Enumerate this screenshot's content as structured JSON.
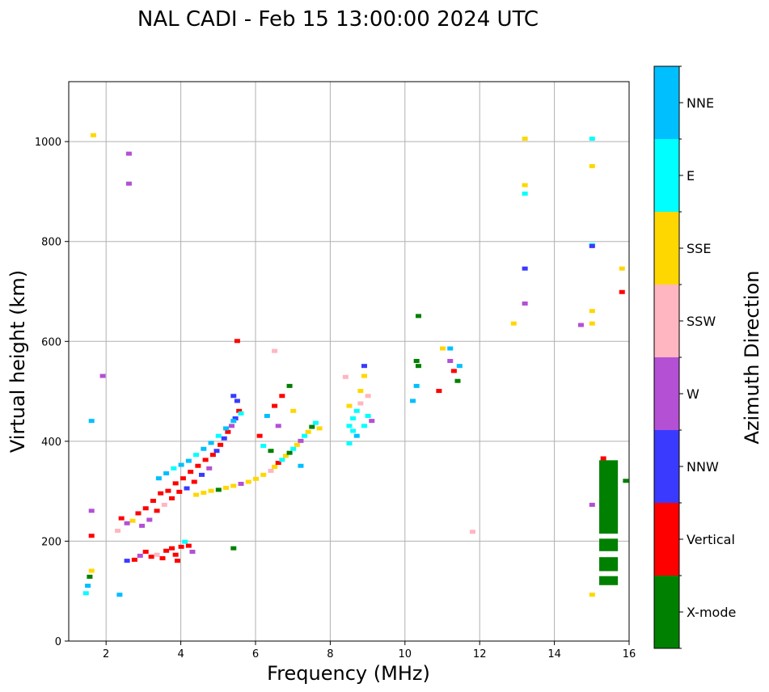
{
  "chart_data": {
    "type": "scatter",
    "title": "NAL CADI - Feb 15 13:00:00 2024 UTC",
    "xlabel": "Frequency (MHz)",
    "ylabel": "Virtual height (km)",
    "xlim": [
      1,
      16
    ],
    "ylim": [
      0,
      1120
    ],
    "xticks": [
      2,
      4,
      6,
      8,
      10,
      12,
      14,
      16
    ],
    "yticks": [
      0,
      200,
      400,
      600,
      800,
      1000
    ],
    "grid": true,
    "colorbar": {
      "label": "Azimuth Direction",
      "categories": [
        {
          "name": "X-mode",
          "color": "#008000"
        },
        {
          "name": "Vertical",
          "color": "#ff0000"
        },
        {
          "name": "NNW",
          "color": "#3a3aff"
        },
        {
          "name": "W",
          "color": "#b350d4"
        },
        {
          "name": "SSW",
          "color": "#ffb6c1"
        },
        {
          "name": "SSE",
          "color": "#ffd700"
        },
        {
          "name": "E",
          "color": "#00ffff"
        },
        {
          "name": "NNE",
          "color": "#00bfff"
        }
      ]
    },
    "series": [
      {
        "name": "trace-low",
        "points": [
          [
            1.45,
            95,
            "E"
          ],
          [
            1.5,
            110,
            "NNE"
          ],
          [
            1.55,
            128,
            "X-mode"
          ],
          [
            1.6,
            140,
            "SSE"
          ],
          [
            2.35,
            92,
            "NNE"
          ],
          [
            2.55,
            160,
            "NNW"
          ],
          [
            2.75,
            162,
            "Vertical"
          ],
          [
            2.9,
            170,
            "W"
          ],
          [
            3.05,
            178,
            "Vertical"
          ],
          [
            3.2,
            168,
            "Vertical"
          ],
          [
            3.35,
            172,
            "SSW"
          ],
          [
            3.5,
            165,
            "Vertical"
          ],
          [
            3.6,
            180,
            "Vertical"
          ],
          [
            3.75,
            185,
            "Vertical"
          ],
          [
            3.85,
            172,
            "Vertical"
          ],
          [
            4.0,
            188,
            "Vertical"
          ],
          [
            4.1,
            198,
            "E"
          ],
          [
            4.2,
            190,
            "Vertical"
          ],
          [
            4.3,
            178,
            "W"
          ],
          [
            3.9,
            160,
            "Vertical"
          ]
        ]
      },
      {
        "name": "trace-main",
        "points": [
          [
            2.3,
            220,
            "SSW"
          ],
          [
            2.4,
            245,
            "Vertical"
          ],
          [
            2.55,
            235,
            "W"
          ],
          [
            2.7,
            240,
            "SSE"
          ],
          [
            2.85,
            255,
            "Vertical"
          ],
          [
            2.95,
            230,
            "W"
          ],
          [
            3.05,
            265,
            "Vertical"
          ],
          [
            3.15,
            242,
            "W"
          ],
          [
            3.25,
            280,
            "Vertical"
          ],
          [
            3.35,
            260,
            "Vertical"
          ],
          [
            3.45,
            295,
            "Vertical"
          ],
          [
            3.55,
            272,
            "SSW"
          ],
          [
            3.65,
            300,
            "Vertical"
          ],
          [
            3.75,
            285,
            "Vertical"
          ],
          [
            3.85,
            315,
            "Vertical"
          ],
          [
            3.95,
            298,
            "Vertical"
          ],
          [
            4.05,
            325,
            "Vertical"
          ],
          [
            4.15,
            305,
            "NNW"
          ],
          [
            4.25,
            338,
            "Vertical"
          ],
          [
            4.35,
            318,
            "Vertical"
          ],
          [
            4.45,
            350,
            "Vertical"
          ],
          [
            4.55,
            332,
            "NNW"
          ],
          [
            4.65,
            362,
            "Vertical"
          ],
          [
            4.75,
            345,
            "W"
          ],
          [
            4.85,
            372,
            "Vertical"
          ],
          [
            4.95,
            380,
            "NNW"
          ],
          [
            5.05,
            392,
            "Vertical"
          ],
          [
            5.15,
            405,
            "NNW"
          ],
          [
            5.25,
            418,
            "Vertical"
          ],
          [
            5.35,
            430,
            "W"
          ],
          [
            5.45,
            445,
            "NNW"
          ],
          [
            5.55,
            460,
            "Vertical"
          ],
          [
            5.5,
            480,
            "NNW"
          ],
          [
            5.4,
            490,
            "NNW"
          ]
        ]
      },
      {
        "name": "trace-upper",
        "points": [
          [
            3.4,
            325,
            "NNE"
          ],
          [
            3.6,
            335,
            "NNE"
          ],
          [
            3.8,
            345,
            "E"
          ],
          [
            4.0,
            352,
            "NNE"
          ],
          [
            4.2,
            360,
            "NNE"
          ],
          [
            4.4,
            372,
            "E"
          ],
          [
            4.6,
            384,
            "NNE"
          ],
          [
            4.8,
            396,
            "NNE"
          ],
          [
            5.0,
            410,
            "E"
          ],
          [
            5.2,
            425,
            "NNE"
          ],
          [
            5.4,
            440,
            "NNE"
          ],
          [
            5.6,
            455,
            "E"
          ]
        ]
      },
      {
        "name": "trace-f2",
        "points": [
          [
            4.4,
            292,
            "SSE"
          ],
          [
            4.6,
            296,
            "SSE"
          ],
          [
            4.8,
            300,
            "SSE"
          ],
          [
            5.0,
            302,
            "X-mode"
          ],
          [
            5.2,
            306,
            "SSE"
          ],
          [
            5.4,
            310,
            "SSE"
          ],
          [
            5.6,
            314,
            "W"
          ],
          [
            5.8,
            318,
            "SSE"
          ],
          [
            6.0,
            324,
            "SSE"
          ],
          [
            6.2,
            332,
            "SSE"
          ],
          [
            6.4,
            340,
            "SSW"
          ],
          [
            6.5,
            348,
            "SSE"
          ],
          [
            6.6,
            356,
            "Vertical"
          ],
          [
            6.7,
            362,
            "E"
          ],
          [
            6.8,
            370,
            "SSE"
          ],
          [
            6.9,
            376,
            "X-mode"
          ],
          [
            7.0,
            384,
            "E"
          ],
          [
            7.1,
            392,
            "SSE"
          ],
          [
            7.2,
            400,
            "W"
          ],
          [
            7.3,
            410,
            "E"
          ],
          [
            7.4,
            418,
            "SSE"
          ],
          [
            7.5,
            428,
            "X-mode"
          ],
          [
            7.6,
            436,
            "E"
          ],
          [
            7.7,
            425,
            "SSE"
          ],
          [
            6.1,
            410,
            "Vertical"
          ],
          [
            6.3,
            450,
            "NNE"
          ],
          [
            6.5,
            470,
            "Vertical"
          ],
          [
            6.7,
            490,
            "Vertical"
          ],
          [
            6.9,
            510,
            "X-mode"
          ],
          [
            6.2,
            390,
            "E"
          ],
          [
            6.6,
            430,
            "W"
          ],
          [
            7.0,
            460,
            "SSE"
          ],
          [
            7.2,
            350,
            "NNE"
          ],
          [
            6.4,
            380,
            "X-mode"
          ]
        ]
      },
      {
        "name": "cluster-8-9",
        "points": [
          [
            8.5,
            430,
            "E"
          ],
          [
            8.6,
            445,
            "E"
          ],
          [
            8.7,
            460,
            "E"
          ],
          [
            8.8,
            475,
            "SSW"
          ],
          [
            8.9,
            430,
            "E"
          ],
          [
            9.0,
            450,
            "E"
          ],
          [
            9.1,
            440,
            "W"
          ],
          [
            8.5,
            470,
            "SSE"
          ],
          [
            8.6,
            420,
            "E"
          ],
          [
            8.7,
            410,
            "NNE"
          ],
          [
            8.8,
            500,
            "SSE"
          ],
          [
            9.0,
            490,
            "SSW"
          ],
          [
            8.9,
            550,
            "NNW"
          ],
          [
            8.9,
            530,
            "SSE"
          ],
          [
            8.4,
            528,
            "SSW"
          ],
          [
            8.5,
            395,
            "E"
          ]
        ]
      },
      {
        "name": "cluster-10-11",
        "points": [
          [
            10.2,
            480,
            "NNE"
          ],
          [
            10.3,
            510,
            "NNE"
          ],
          [
            10.35,
            550,
            "X-mode"
          ],
          [
            10.3,
            560,
            "X-mode"
          ],
          [
            10.35,
            650,
            "X-mode"
          ],
          [
            10.9,
            500,
            "Vertical"
          ],
          [
            11.0,
            585,
            "SSE"
          ],
          [
            11.2,
            560,
            "W"
          ],
          [
            11.3,
            540,
            "Vertical"
          ],
          [
            11.4,
            520,
            "X-mode"
          ],
          [
            11.45,
            550,
            "NNE"
          ],
          [
            11.2,
            585,
            "NNE"
          ]
        ]
      },
      {
        "name": "high-echoes",
        "points": [
          [
            1.65,
            1012,
            "SSE"
          ],
          [
            2.6,
            975,
            "W"
          ],
          [
            2.6,
            915,
            "W"
          ],
          [
            1.9,
            530,
            "W"
          ],
          [
            1.6,
            440,
            "NNE"
          ],
          [
            1.6,
            260,
            "W"
          ],
          [
            1.6,
            210,
            "Vertical"
          ],
          [
            5.5,
            600,
            "Vertical"
          ],
          [
            6.5,
            580,
            "SSW"
          ],
          [
            5.4,
            185,
            "X-mode"
          ],
          [
            11.8,
            218,
            "SSW"
          ],
          [
            12.9,
            635,
            "SSE"
          ],
          [
            13.2,
            1005,
            "SSE"
          ],
          [
            13.2,
            912,
            "SSE"
          ],
          [
            13.2,
            895,
            "E"
          ],
          [
            13.2,
            745,
            "NNW"
          ],
          [
            13.2,
            675,
            "W"
          ],
          [
            14.7,
            632,
            "W"
          ],
          [
            15.0,
            1005,
            "E"
          ],
          [
            15.0,
            950,
            "SSE"
          ],
          [
            15.0,
            792,
            "E"
          ],
          [
            15.0,
            790,
            "NNW"
          ],
          [
            15.0,
            660,
            "SSE"
          ],
          [
            15.0,
            635,
            "SSE"
          ],
          [
            15.0,
            272,
            "W"
          ],
          [
            15.0,
            92,
            "SSE"
          ],
          [
            15.8,
            745,
            "SSE"
          ],
          [
            15.8,
            698,
            "Vertical"
          ],
          [
            15.9,
            320,
            "X-mode"
          ],
          [
            15.3,
            365,
            "Vertical"
          ]
        ]
      }
    ],
    "bars": [
      {
        "x0": 15.2,
        "x1": 15.7,
        "y0": 215,
        "y1": 362,
        "category": "X-mode"
      },
      {
        "x0": 15.2,
        "x1": 15.7,
        "y0": 180,
        "y1": 205,
        "category": "X-mode"
      },
      {
        "x0": 15.2,
        "x1": 15.7,
        "y0": 140,
        "y1": 168,
        "category": "X-mode"
      },
      {
        "x0": 15.2,
        "x1": 15.7,
        "y0": 112,
        "y1": 130,
        "category": "X-mode"
      }
    ]
  }
}
